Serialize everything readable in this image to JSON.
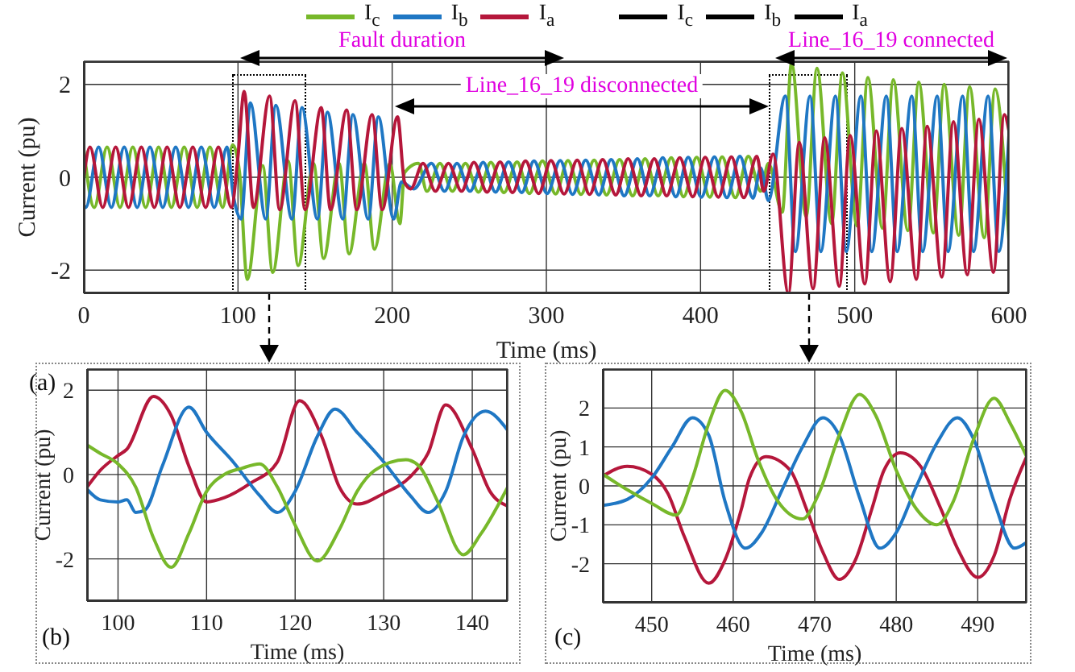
{
  "chart_data": [
    {
      "type": "line",
      "xlabel": "Time (ms)",
      "ylabel": "Current (pu)",
      "xlim": [
        0,
        600
      ],
      "ylim": [
        -2.5,
        2.5
      ],
      "xticks": [
        0,
        100,
        200,
        300,
        400,
        500,
        600
      ],
      "yticks": [
        -2,
        0,
        2
      ],
      "grid": true,
      "legend": "top",
      "marker": "none",
      "line_style": "solid",
      "annotations": [
        "Fault duration",
        "Line_16_19 disconnected",
        "Line_16_19 connected",
        "(a)"
      ],
      "series": [
        {
          "name": "I$_{c}$",
          "color": "#77b82a",
          "x": [
            0,
            6.8,
            15.1,
            23.5,
            31.8,
            40.1,
            48.5,
            56.8,
            65.1,
            73.5,
            81.8,
            90.1,
            96.5,
            101,
            106,
            116,
            122.5,
            132.5,
            139,
            149,
            155.5,
            165.5,
            172,
            182,
            188.5,
            198.5,
            205,
            208,
            217,
            222.5,
            231,
            239,
            247.5,
            256,
            264,
            272.5,
            281,
            289,
            297.5,
            306,
            314,
            322.5,
            331,
            339,
            347.5,
            356,
            364,
            372.5,
            381,
            389,
            397.5,
            406,
            414,
            422.5,
            431,
            439,
            444,
            453,
            459,
            468.5,
            475.5,
            485,
            492,
            501.5,
            508.5,
            518,
            525,
            534.5,
            541.5,
            551,
            558,
            567.5,
            574.5,
            584,
            591,
            600
          ],
          "values": [
            0.6,
            -0.65,
            0.65,
            -0.65,
            0.65,
            -0.65,
            0.65,
            -0.65,
            0.65,
            -0.65,
            0.65,
            -0.65,
            0.7,
            0.1,
            -2.2,
            0.25,
            -2.05,
            0.35,
            -1.9,
            0.3,
            -1.75,
            0.3,
            -1.65,
            0.3,
            -1.55,
            0.3,
            -1.0,
            0.1,
            0.3,
            -0.3,
            0.3,
            -0.3,
            0.3,
            -0.32,
            0.32,
            -0.33,
            0.33,
            -0.35,
            0.35,
            -0.36,
            0.36,
            -0.37,
            0.37,
            -0.38,
            0.38,
            -0.4,
            0.4,
            -0.4,
            0.42,
            -0.42,
            0.43,
            -0.43,
            0.44,
            -0.44,
            0.45,
            -0.3,
            0.3,
            -0.75,
            2.45,
            -0.85,
            2.35,
            -1.0,
            2.25,
            -1.05,
            2.15,
            -1.1,
            2.1,
            -1.15,
            2.05,
            -1.2,
            2.0,
            -1.25,
            1.95,
            -1.3,
            1.9,
            -1.35
          ]
        },
        {
          "name": "I$_{b}$",
          "color": "#1f77c4",
          "x": [
            0,
            1.3,
            9.6,
            17.9,
            26.2,
            34.6,
            42.9,
            51.2,
            59.6,
            67.9,
            76.2,
            84.6,
            92.9,
            97,
            102,
            108,
            118,
            124.5,
            135,
            141.5,
            151.5,
            158,
            168,
            174.5,
            184.5,
            191,
            201,
            206,
            214,
            225.5,
            234,
            242,
            250.5,
            259,
            267,
            275.5,
            284,
            292,
            300.5,
            309,
            317,
            325.5,
            334,
            342,
            350.5,
            359,
            367,
            375.5,
            384,
            392,
            400.5,
            409,
            417,
            425.5,
            434,
            439,
            444,
            455,
            461.5,
            471,
            478,
            487.5,
            494.5,
            504,
            511,
            520.5,
            527.5,
            537,
            544,
            553.5,
            560.5,
            570,
            577,
            586.5,
            593.5,
            600
          ],
          "values": [
            -0.6,
            -0.65,
            0.65,
            -0.65,
            0.65,
            -0.65,
            0.65,
            -0.65,
            0.65,
            -0.65,
            0.65,
            -0.65,
            0.65,
            -0.4,
            -0.9,
            1.6,
            -0.9,
            1.55,
            -0.9,
            1.5,
            -0.9,
            1.4,
            -0.9,
            1.35,
            -0.9,
            1.3,
            -0.9,
            -0.1,
            -0.25,
            0.3,
            -0.3,
            0.3,
            -0.3,
            0.32,
            -0.32,
            0.33,
            -0.33,
            0.35,
            -0.35,
            0.36,
            -0.37,
            0.37,
            -0.38,
            0.38,
            -0.4,
            0.4,
            -0.4,
            0.42,
            -0.42,
            0.43,
            -0.43,
            0.44,
            -0.44,
            0.45,
            -0.45,
            0.2,
            -0.5,
            1.75,
            -1.6,
            1.75,
            -1.6,
            1.75,
            -1.6,
            1.75,
            -1.6,
            1.75,
            -1.6,
            1.75,
            -1.6,
            1.75,
            -1.6,
            1.75,
            -1.6,
            1.75,
            -1.6,
            0.9
          ]
        },
        {
          "name": "I$_{a}$",
          "color": "#b5173b",
          "x": [
            0,
            4,
            12.3,
            20.7,
            29,
            37.3,
            45.7,
            54,
            62.3,
            70.7,
            79,
            87.3,
            95.7,
            100,
            104,
            110,
            120.5,
            127,
            137,
            143.5,
            154,
            160,
            170.5,
            177,
            187,
            193.5,
            203.5,
            208,
            212,
            220,
            228,
            236.5,
            245,
            253,
            261.5,
            270,
            278,
            286.5,
            295,
            303,
            311.5,
            320,
            328,
            336.5,
            345,
            353,
            361.5,
            370,
            378,
            386.5,
            395,
            403,
            411.5,
            420,
            428,
            436.5,
            441,
            447,
            457,
            464,
            473,
            480.5,
            490,
            497,
            506.5,
            514,
            523,
            530.5,
            540,
            547,
            556.5,
            564,
            573,
            580.5,
            590,
            597,
            600
          ],
          "values": [
            0,
            0.65,
            -0.65,
            0.65,
            -0.65,
            0.65,
            -0.65,
            0.65,
            -0.65,
            0.65,
            -0.65,
            0.65,
            -0.65,
            0.45,
            1.85,
            -0.65,
            1.75,
            -0.7,
            1.65,
            -0.7,
            1.5,
            -0.7,
            1.45,
            -0.7,
            1.35,
            -0.7,
            1.3,
            -0.1,
            -0.25,
            0.3,
            -0.3,
            0.3,
            -0.3,
            0.32,
            -0.32,
            0.33,
            -0.33,
            0.35,
            -0.35,
            0.36,
            -0.36,
            0.37,
            -0.37,
            0.38,
            -0.38,
            0.4,
            -0.4,
            0.4,
            -0.4,
            0.42,
            -0.42,
            0.43,
            -0.43,
            0.44,
            -0.44,
            0.45,
            -0.3,
            0.5,
            -2.5,
            0.75,
            -2.4,
            0.85,
            -2.35,
            0.9,
            -2.3,
            1.0,
            -2.25,
            1.05,
            -2.2,
            1.1,
            -2.15,
            1.2,
            -2.1,
            1.25,
            -2.05,
            1.35,
            1.0
          ]
        },
        {
          "name": "I$_{c}$",
          "color": "#000000"
        },
        {
          "name": "I$_{b}$",
          "color": "#000000"
        },
        {
          "name": "I$_{a}$",
          "color": "#000000"
        }
      ]
    },
    {
      "type": "line",
      "xlabel": "Time (ms)",
      "ylabel": "Current (pu)",
      "xlim": [
        96.5,
        144
      ],
      "ylim": [
        -3,
        2.5
      ],
      "xticks": [
        100,
        110,
        120,
        130,
        140
      ],
      "yticks": [
        -2,
        0,
        2
      ],
      "grid": true,
      "marker": "none",
      "line_style": "solid",
      "annotations": [
        "(b)"
      ],
      "series": [
        {
          "color": "#b5173b",
          "x": [
            96.5,
            98,
            100,
            101,
            104,
            106,
            108,
            110,
            112,
            115,
            118,
            120.5,
            123,
            125,
            127,
            130,
            133,
            135,
            137,
            140,
            142,
            144
          ],
          "values": [
            -0.3,
            0.1,
            0.45,
            0.6,
            1.85,
            1.4,
            0.2,
            -0.65,
            -0.55,
            -0.2,
            0.3,
            1.75,
            0.9,
            -0.3,
            -0.7,
            -0.45,
            -0.05,
            0.5,
            1.65,
            0.6,
            -0.4,
            -0.75
          ]
        },
        {
          "color": "#1f77c4",
          "x": [
            96.5,
            98,
            100,
            101,
            102,
            103,
            105,
            108,
            110,
            113,
            116,
            118,
            120,
            122.5,
            124.5,
            127,
            130,
            133,
            135,
            137,
            139,
            141.5,
            144
          ],
          "values": [
            -0.35,
            -0.6,
            -0.65,
            -0.6,
            -0.9,
            -0.85,
            0.2,
            1.6,
            1.0,
            0.3,
            -0.5,
            -0.9,
            -0.4,
            0.9,
            1.55,
            1.0,
            0.3,
            -0.5,
            -0.9,
            -0.4,
            0.9,
            1.5,
            1.05
          ]
        },
        {
          "color": "#77b82a",
          "x": [
            96.5,
            98,
            100,
            102,
            104,
            106,
            108,
            110,
            112,
            114,
            116,
            118,
            120,
            122.5,
            125,
            127,
            129,
            132.5,
            134,
            136,
            139,
            141,
            144
          ],
          "values": [
            0.7,
            0.5,
            0.25,
            -0.3,
            -1.5,
            -2.2,
            -1.4,
            -0.4,
            0.0,
            0.15,
            0.25,
            -0.3,
            -1.2,
            -2.05,
            -1.3,
            -0.4,
            0.1,
            0.35,
            0.2,
            -0.6,
            -1.9,
            -1.4,
            -0.3
          ]
        }
      ]
    },
    {
      "type": "line",
      "xlabel": "Time (ms)",
      "ylabel": "Current (pu)",
      "xlim": [
        444,
        496
      ],
      "ylim": [
        -3,
        3
      ],
      "xticks": [
        450,
        460,
        470,
        480,
        490
      ],
      "yticks": [
        -2,
        -1,
        0,
        1,
        2
      ],
      "grid": true,
      "marker": "none",
      "line_style": "solid",
      "annotations": [
        "(c)"
      ],
      "series": [
        {
          "color": "#b5173b",
          "x": [
            444,
            447,
            450,
            452,
            454,
            457,
            459,
            461,
            462,
            464,
            467,
            469,
            471,
            473,
            475,
            477,
            478.5,
            480.5,
            483,
            485.5,
            487.5,
            490,
            492,
            494,
            496
          ],
          "values": [
            0.25,
            0.5,
            0.3,
            -0.2,
            -1.3,
            -2.5,
            -1.9,
            -0.6,
            0.2,
            0.75,
            0.4,
            -0.6,
            -1.7,
            -2.4,
            -1.9,
            -0.6,
            0.4,
            0.85,
            0.5,
            -0.6,
            -1.6,
            -2.35,
            -1.8,
            -0.3,
            0.75
          ]
        },
        {
          "color": "#1f77c4",
          "x": [
            444,
            447,
            450,
            452.5,
            455,
            457,
            459,
            461.5,
            463.5,
            466,
            468.5,
            471,
            473,
            475.5,
            478,
            480,
            482.5,
            485,
            487.5,
            489.5,
            492,
            494.5,
            496
          ],
          "values": [
            -0.5,
            -0.35,
            0.2,
            1.0,
            1.75,
            1.3,
            -0.4,
            -1.6,
            -1.2,
            -0.1,
            1.0,
            1.75,
            1.3,
            -0.3,
            -1.6,
            -1.2,
            0.0,
            1.1,
            1.75,
            1.2,
            -0.4,
            -1.6,
            -1.45
          ]
        },
        {
          "color": "#77b82a",
          "x": [
            444,
            447,
            450,
            453,
            455,
            457,
            459,
            461,
            463,
            465.5,
            468.5,
            470.5,
            473,
            475.5,
            477.5,
            480,
            482.5,
            485,
            487,
            489.5,
            492,
            494,
            496
          ],
          "values": [
            0.3,
            -0.1,
            -0.45,
            -0.75,
            0.2,
            1.6,
            2.45,
            1.9,
            0.7,
            -0.4,
            -0.85,
            -0.2,
            1.3,
            2.35,
            1.8,
            0.4,
            -0.6,
            -1.0,
            -0.4,
            1.2,
            2.25,
            1.6,
            0.75
          ]
        }
      ]
    }
  ]
}
